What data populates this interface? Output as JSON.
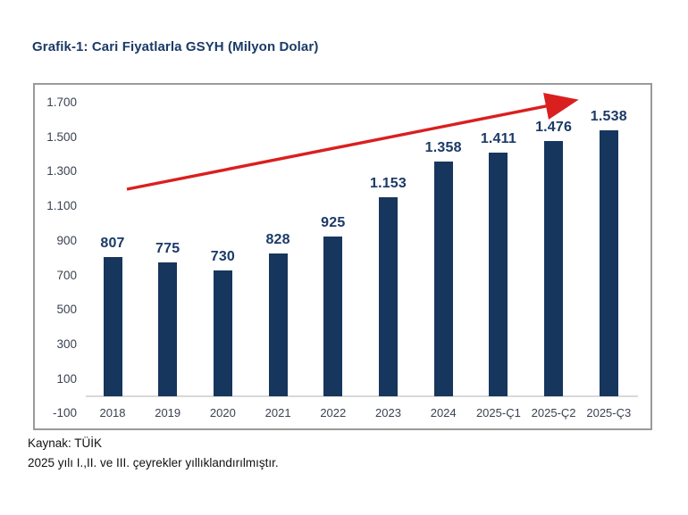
{
  "title": "Grafik-1: Cari Fiyatlarla GSYH (Milyon Dolar)",
  "footer": {
    "source": "Kaynak: TÜİK",
    "note": "2025 yılı I.,II. ve III. çeyrekler yıllıklandırılmıştır."
  },
  "colors": {
    "bar": "#17365d",
    "value_label": "#1b3a67",
    "title": "#1b3a67",
    "axis_text": "#3a4250",
    "arrow": "#da1f1f",
    "chart_border": "#9a9a9a",
    "baseline": "#d9d9d9"
  },
  "chart_data": {
    "type": "bar",
    "title": "Grafik-1: Cari Fiyatlarla GSYH (Milyon Dolar)",
    "categories": [
      "2018",
      "2019",
      "2020",
      "2021",
      "2022",
      "2023",
      "2024",
      "2025-Ç1",
      "2025-Ç2",
      "2025-Ç3"
    ],
    "values": [
      807,
      775,
      730,
      828,
      925,
      1153,
      1358,
      1411,
      1476,
      1538
    ],
    "value_labels": [
      "807",
      "775",
      "730",
      "828",
      "925",
      "1.153",
      "1.358",
      "1.411",
      "1.476",
      "1.538"
    ],
    "y_ticks": [
      -100,
      100,
      300,
      500,
      700,
      900,
      1100,
      1300,
      1500,
      1700
    ],
    "y_tick_labels": [
      "-100",
      "100",
      "300",
      "500",
      "700",
      "900",
      "1.100",
      "1.300",
      "1.500",
      "1.700"
    ],
    "ylim": [
      -100,
      1700
    ],
    "xlabel": "",
    "ylabel": "",
    "grid": false,
    "legend": false,
    "annotations": [
      {
        "type": "trend-arrow",
        "description": "red upward trend arrow across bars"
      }
    ]
  }
}
